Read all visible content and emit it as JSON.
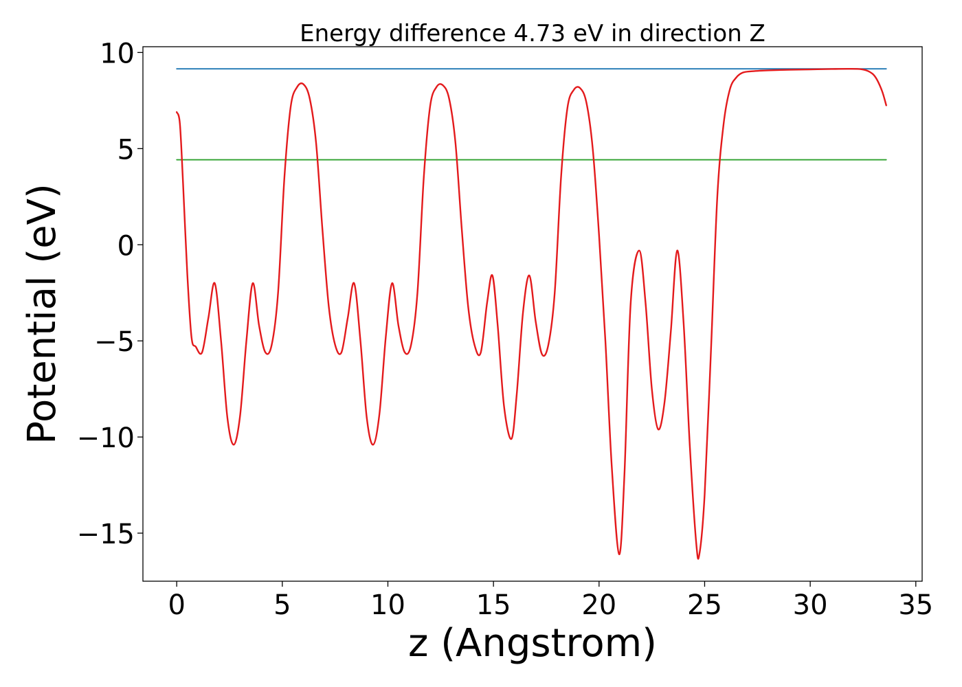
{
  "chart_data": {
    "type": "line",
    "title": "Energy difference 4.73 eV in direction Z",
    "xlabel": "z (Angstrom)",
    "ylabel": "Potential (eV)",
    "xlim": [
      -1.6,
      35.3
    ],
    "ylim": [
      -17.5,
      10.3
    ],
    "x_ticks": [
      0,
      5,
      10,
      15,
      20,
      25,
      30,
      35
    ],
    "y_ticks": [
      10,
      5,
      0,
      -5,
      -10,
      -15
    ],
    "x_tick_labels": [
      "0",
      "5",
      "10",
      "15",
      "20",
      "25",
      "30",
      "35"
    ],
    "y_tick_labels": [
      "10",
      "5",
      "0",
      "−5",
      "−10",
      "−15"
    ],
    "grid": false,
    "legend": "none",
    "series": [
      {
        "color": "#1f77b4",
        "x": [
          0,
          33.6
        ],
        "y": [
          9.15,
          9.15
        ]
      },
      {
        "color": "#2ca02c",
        "x": [
          0,
          33.6
        ],
        "y": [
          4.42,
          4.42
        ]
      },
      {
        "color": "#e31a1c",
        "x": [
          0,
          0.15,
          0.3,
          0.5,
          0.7,
          0.9,
          1.2,
          1.5,
          1.8,
          2.1,
          2.4,
          2.7,
          3.0,
          3.3,
          3.6,
          3.9,
          4.2,
          4.5,
          4.8,
          5.1,
          5.4,
          5.7,
          6.0,
          6.3,
          6.6,
          6.9,
          7.2,
          7.5,
          7.8,
          8.1,
          8.4,
          8.7,
          9.0,
          9.3,
          9.6,
          9.9,
          10.2,
          10.5,
          10.8,
          11.1,
          11.4,
          11.7,
          12.0,
          12.3,
          12.6,
          12.9,
          13.2,
          13.5,
          13.8,
          14.1,
          14.4,
          14.7,
          14.95,
          15.2,
          15.5,
          15.85,
          16.1,
          16.4,
          16.7,
          17.0,
          17.3,
          17.6,
          17.9,
          18.2,
          18.5,
          18.8,
          19.1,
          19.4,
          19.7,
          20.0,
          20.3,
          20.6,
          20.95,
          21.2,
          21.5,
          21.9,
          22.2,
          22.5,
          22.8,
          23.1,
          23.4,
          23.7,
          24.0,
          24.3,
          24.6,
          24.75,
          25.0,
          25.3,
          25.6,
          25.9,
          26.2,
          26.5,
          26.8,
          27.2,
          27.6,
          28.0,
          29.0,
          30.0,
          31.0,
          31.8,
          32.4,
          32.8,
          33.1,
          33.4,
          33.6
        ],
        "y": [
          6.9,
          6.3,
          3.2,
          -1.5,
          -4.8,
          -5.3,
          -5.6,
          -3.8,
          -2.0,
          -5.0,
          -9.0,
          -10.4,
          -8.9,
          -5.0,
          -2.0,
          -4.2,
          -5.6,
          -5.2,
          -2.5,
          3.5,
          7.2,
          8.2,
          8.35,
          7.6,
          5.3,
          0.8,
          -3.2,
          -5.2,
          -5.6,
          -3.8,
          -2.0,
          -5.0,
          -9.0,
          -10.4,
          -8.8,
          -4.8,
          -2.0,
          -4.2,
          -5.6,
          -5.2,
          -2.5,
          3.5,
          7.2,
          8.2,
          8.3,
          7.6,
          5.3,
          0.8,
          -3.2,
          -5.2,
          -5.6,
          -3.0,
          -1.6,
          -4.2,
          -8.4,
          -10.1,
          -7.8,
          -3.5,
          -1.6,
          -4.0,
          -5.7,
          -5.2,
          -2.5,
          3.5,
          7.1,
          8.05,
          8.15,
          7.4,
          5.0,
          0.5,
          -5.0,
          -11.5,
          -16.1,
          -12.0,
          -3.0,
          -0.3,
          -3.0,
          -7.5,
          -9.6,
          -8.2,
          -4.5,
          -0.3,
          -4.0,
          -10.5,
          -15.5,
          -16.1,
          -13.0,
          -5.5,
          2.5,
          6.3,
          8.1,
          8.7,
          8.95,
          9.02,
          9.05,
          9.07,
          9.1,
          9.12,
          9.14,
          9.15,
          9.13,
          9.0,
          8.7,
          8.0,
          7.25
        ]
      }
    ]
  }
}
